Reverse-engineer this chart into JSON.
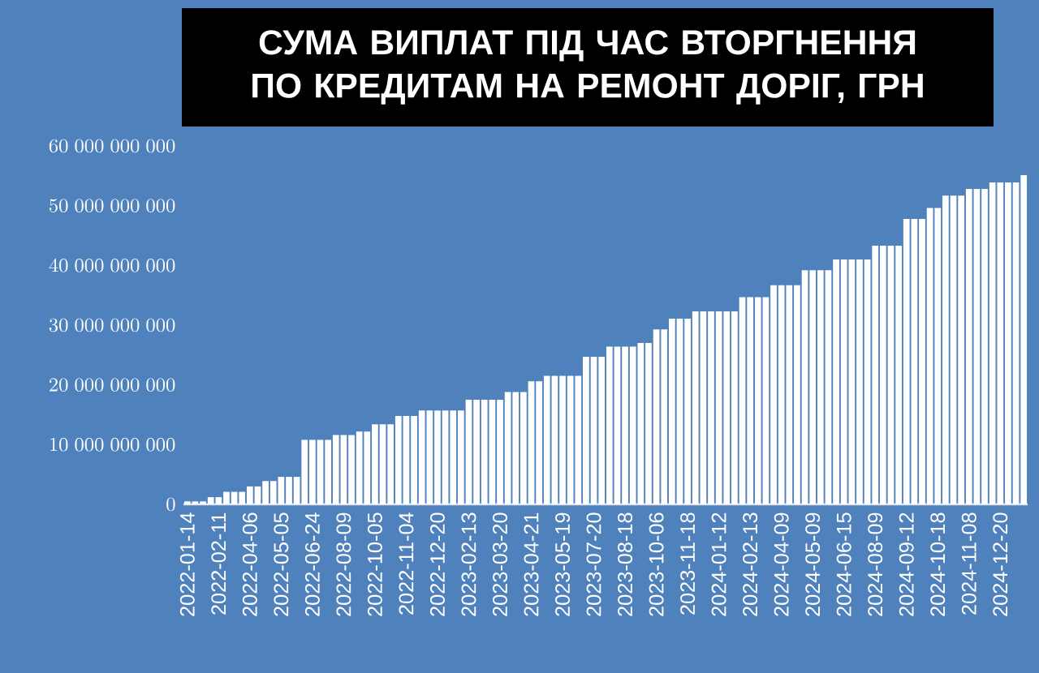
{
  "chart_data": {
    "type": "bar",
    "title": "СУМА ВИПЛАТ ПІД ЧАС ВТОРГНЕННЯ ПО КРЕДИТАМ НА РЕМОНТ ДОРІГ, ГРН",
    "categories": [
      "2022-01-14",
      null,
      null,
      null,
      "2022-02-11",
      null,
      null,
      null,
      "2022-04-06",
      null,
      null,
      null,
      "2022-05-05",
      null,
      null,
      null,
      "2022-06-24",
      null,
      null,
      null,
      "2022-08-09",
      null,
      null,
      null,
      "2022-10-05",
      null,
      null,
      null,
      "2022-11-04",
      null,
      null,
      null,
      "2022-12-20",
      null,
      null,
      null,
      "2023-02-13",
      null,
      null,
      null,
      "2023-03-20",
      null,
      null,
      null,
      "2023-04-21",
      null,
      null,
      null,
      "2023-05-19",
      null,
      null,
      null,
      "2023-07-20",
      null,
      null,
      null,
      "2023-08-18",
      null,
      null,
      null,
      "2023-10-06",
      null,
      null,
      null,
      "2023-11-18",
      null,
      null,
      null,
      "2024-01-12",
      null,
      null,
      null,
      "2024-02-13",
      null,
      null,
      null,
      "2024-04-09",
      null,
      null,
      null,
      "2024-05-09",
      null,
      null,
      null,
      "2024-06-15",
      null,
      null,
      null,
      "2024-08-09",
      null,
      null,
      null,
      "2024-09-12",
      null,
      null,
      null,
      "2024-10-18",
      null,
      null,
      null,
      "2024-11-08",
      null,
      null,
      null,
      "2024-12-20",
      null,
      null,
      null
    ],
    "values": [
      500000000,
      500000000,
      500000000,
      1200000000,
      1200000000,
      2100000000,
      2100000000,
      2100000000,
      3000000000,
      3000000000,
      3900000000,
      3900000000,
      4600000000,
      4600000000,
      4600000000,
      10800000000,
      10800000000,
      10800000000,
      10800000000,
      11600000000,
      11600000000,
      11600000000,
      12200000000,
      12200000000,
      13400000000,
      13400000000,
      13400000000,
      14800000000,
      14800000000,
      14800000000,
      15700000000,
      15700000000,
      15700000000,
      15700000000,
      15700000000,
      15700000000,
      17500000000,
      17500000000,
      17500000000,
      17500000000,
      17500000000,
      18800000000,
      18800000000,
      18800000000,
      20600000000,
      20600000000,
      21500000000,
      21500000000,
      21500000000,
      21500000000,
      21500000000,
      24700000000,
      24700000000,
      24700000000,
      26400000000,
      26400000000,
      26400000000,
      26400000000,
      27000000000,
      27000000000,
      29300000000,
      29300000000,
      31100000000,
      31100000000,
      31100000000,
      32300000000,
      32300000000,
      32300000000,
      32300000000,
      32300000000,
      32300000000,
      34700000000,
      34700000000,
      34700000000,
      34700000000,
      36700000000,
      36700000000,
      36700000000,
      36700000000,
      39200000000,
      39200000000,
      39200000000,
      39200000000,
      41000000000,
      41000000000,
      41000000000,
      41000000000,
      41000000000,
      43300000000,
      43300000000,
      43300000000,
      43300000000,
      47800000000,
      47800000000,
      47800000000,
      49600000000,
      49600000000,
      51700000000,
      51700000000,
      51700000000,
      52800000000,
      52800000000,
      52800000000,
      53900000000,
      53900000000,
      53900000000,
      53900000000,
      55100000000
    ],
    "color": "#ffffff",
    "ylim": [
      0,
      60000000000
    ],
    "yticks": [
      0,
      10000000000,
      20000000000,
      30000000000,
      40000000000,
      50000000000,
      60000000000
    ]
  }
}
